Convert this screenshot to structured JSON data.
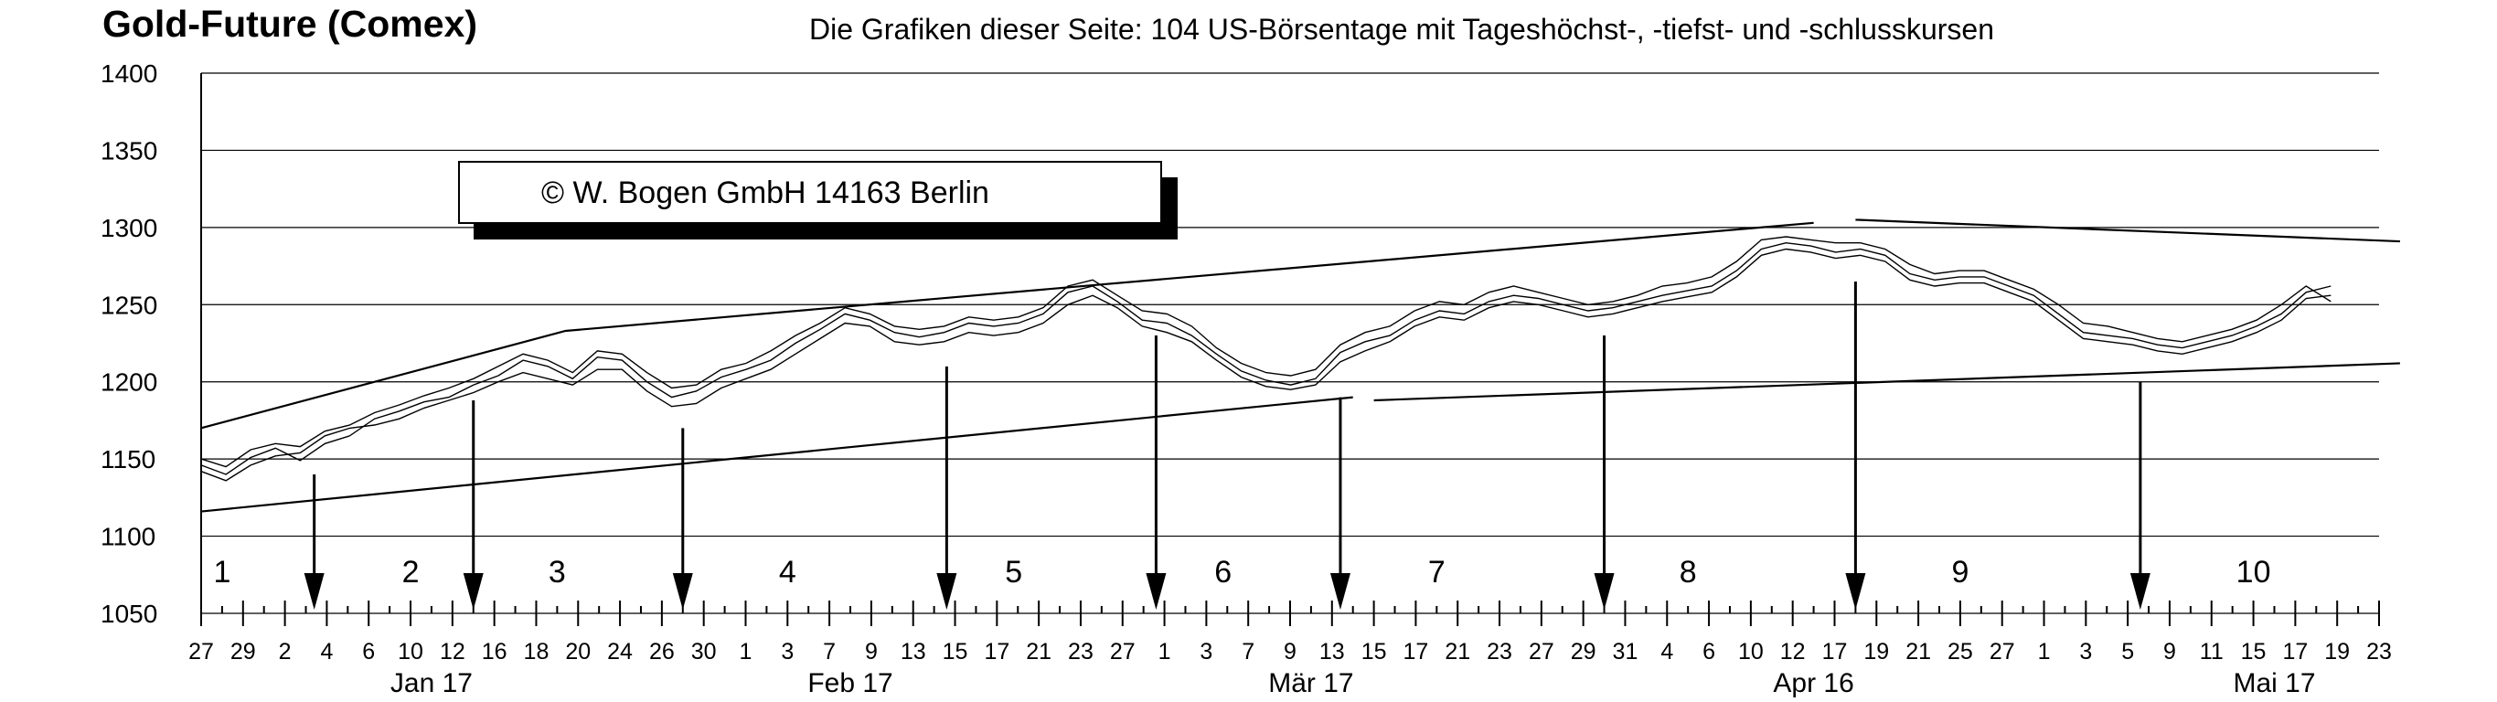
{
  "chart_data": {
    "type": "line",
    "title": "Gold-Future (Comex)",
    "subtitle": "Die Grafiken dieser Seite: 104 US-Börsentage mit Tageshöchst-, -tiefst- und -schlusskursen",
    "copyright": "©  W. Bogen GmbH 14163 Berlin",
    "ylim": [
      1050,
      1400
    ],
    "yticks": [
      1050,
      1100,
      1150,
      1200,
      1250,
      1300,
      1350,
      1400
    ],
    "grid": true,
    "x_tick_labels": [
      "27",
      "29",
      "2",
      "4",
      "6",
      "10",
      "12",
      "16",
      "18",
      "20",
      "24",
      "26",
      "30",
      "1",
      "3",
      "7",
      "9",
      "13",
      "15",
      "17",
      "21",
      "23",
      "27",
      "1",
      "3",
      "7",
      "9",
      "13",
      "15",
      "17",
      "21",
      "23",
      "27",
      "29",
      "31",
      "4",
      "6",
      "10",
      "12",
      "17",
      "19",
      "21",
      "25",
      "27",
      "1",
      "3",
      "5",
      "9",
      "11",
      "15",
      "17",
      "19",
      "23"
    ],
    "month_labels": [
      {
        "label": "Jan 17",
        "at_tick": 5.5
      },
      {
        "label": "Feb 17",
        "at_tick": 15.5
      },
      {
        "label": "Mär 17",
        "at_tick": 26.5
      },
      {
        "label": "Apr 16",
        "at_tick": 38.5
      },
      {
        "label": "Mai 17",
        "at_tick": 49.5
      }
    ],
    "segment_labels": [
      {
        "label": "1",
        "at_tick": 0.5
      },
      {
        "label": "2",
        "at_tick": 5
      },
      {
        "label": "3",
        "at_tick": 8.5
      },
      {
        "label": "4",
        "at_tick": 14
      },
      {
        "label": "5",
        "at_tick": 19.4
      },
      {
        "label": "6",
        "at_tick": 24.4
      },
      {
        "label": "7",
        "at_tick": 29.5
      },
      {
        "label": "8",
        "at_tick": 35.5
      },
      {
        "label": "9",
        "at_tick": 42
      },
      {
        "label": "10",
        "at_tick": 49
      }
    ],
    "arrows_at_tick": [
      2.7,
      6.5,
      11.5,
      17.8,
      22.8,
      27.2,
      33.5,
      39.5,
      46.3
    ],
    "series": [
      {
        "values": [
          1146,
          1140,
          1151,
          1157,
          1149,
          1160,
          1165,
          1176,
          1181,
          1187,
          1190,
          1198,
          1204,
          1214,
          1210,
          1202,
          1216,
          1214,
          1200,
          1190,
          1194,
          1203,
          1208,
          1214,
          1225,
          1234,
          1244,
          1240,
          1232,
          1229,
          1232,
          1238,
          1236,
          1238,
          1244,
          1258,
          1262,
          1252,
          1240,
          1238,
          1230,
          1218,
          1207,
          1201,
          1198,
          1202,
          1219,
          1226,
          1230,
          1240,
          1246,
          1244,
          1252,
          1256,
          1254,
          1250,
          1246,
          1248,
          1252,
          1256,
          1259,
          1262,
          1272,
          1286,
          1290,
          1288,
          1284,
          1286,
          1282,
          1270,
          1266,
          1268,
          1268,
          1262,
          1256,
          1244,
          1232,
          1230,
          1228,
          1224,
          1222,
          1226,
          1230,
          1236,
          1244,
          1258,
          1262
        ]
      },
      {
        "values": [
          1142,
          1136,
          1146,
          1152,
          1154,
          1165,
          1170,
          1172,
          1176,
          1183,
          1188,
          1193,
          1200,
          1206,
          1202,
          1198,
          1208,
          1208,
          1194,
          1184,
          1186,
          1196,
          1202,
          1208,
          1218,
          1228,
          1238,
          1236,
          1226,
          1224,
          1226,
          1232,
          1230,
          1232,
          1238,
          1250,
          1256,
          1248,
          1236,
          1232,
          1226,
          1214,
          1203,
          1197,
          1195,
          1198,
          1213,
          1220,
          1226,
          1236,
          1242,
          1240,
          1248,
          1252,
          1250,
          1246,
          1242,
          1244,
          1248,
          1252,
          1255,
          1258,
          1268,
          1282,
          1286,
          1284,
          1280,
          1282,
          1278,
          1266,
          1262,
          1264,
          1264,
          1258,
          1252,
          1240,
          1228,
          1226,
          1224,
          1220,
          1218,
          1222,
          1226,
          1232,
          1240,
          1254,
          1256
        ]
      },
      {
        "values": [
          1150,
          1145,
          1156,
          1160,
          1158,
          1168,
          1172,
          1180,
          1185,
          1191,
          1196,
          1202,
          1210,
          1218,
          1214,
          1206,
          1220,
          1218,
          1206,
          1196,
          1198,
          1208,
          1212,
          1220,
          1230,
          1238,
          1248,
          1244,
          1236,
          1234,
          1236,
          1242,
          1240,
          1242,
          1248,
          1262,
          1266,
          1256,
          1246,
          1244,
          1236,
          1222,
          1212,
          1206,
          1204,
          1208,
          1224,
          1232,
          1236,
          1246,
          1252,
          1250,
          1258,
          1262,
          1258,
          1254,
          1250,
          1252,
          1256,
          1262,
          1264,
          1268,
          1278,
          1292,
          1294,
          1292,
          1290,
          1290,
          1286,
          1276,
          1270,
          1272,
          1272,
          1266,
          1260,
          1250,
          1238,
          1236,
          1232,
          1228,
          1226,
          1230,
          1234,
          1240,
          1250,
          1262,
          1252
        ]
      }
    ],
    "trendlines": [
      {
        "points": [
          [
            0,
            1170
          ],
          [
            8.7,
            1233
          ],
          [
            38.5,
            1303
          ]
        ]
      },
      {
        "points": [
          [
            39.5,
            1305
          ],
          [
            52.5,
            1291
          ]
        ]
      },
      {
        "points": [
          [
            0,
            1116
          ],
          [
            27.5,
            1190
          ]
        ]
      },
      {
        "points": [
          [
            28.0,
            1188
          ],
          [
            52.5,
            1212
          ]
        ]
      }
    ]
  }
}
